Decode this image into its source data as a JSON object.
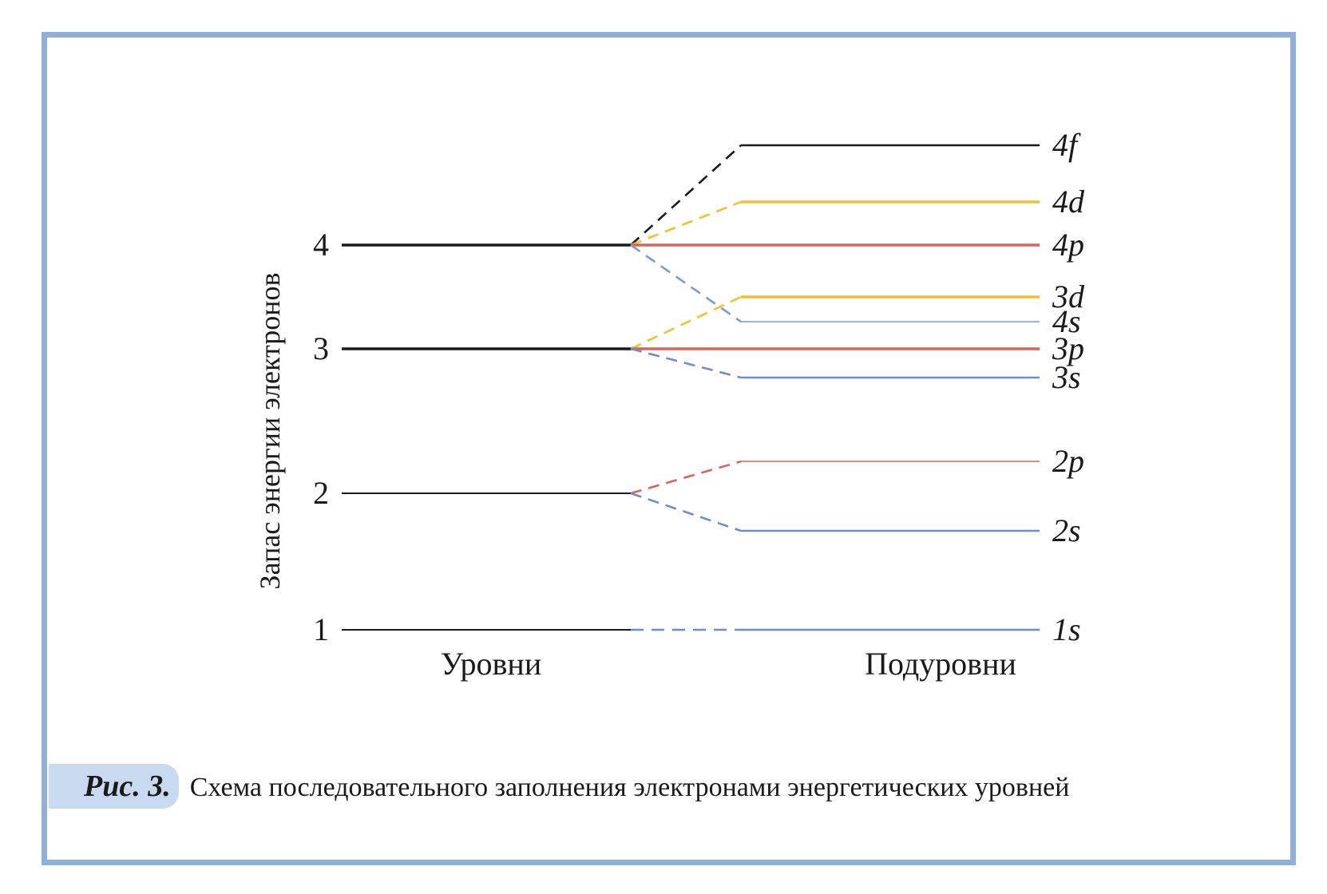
{
  "axis_title": "Запас энергии электронов",
  "column_labels": {
    "levels": "Уровни",
    "sublevels": "Подуровни"
  },
  "levels": [
    {
      "n": "4",
      "bold": true
    },
    {
      "n": "3",
      "bold": true
    },
    {
      "n": "2",
      "bold": false
    },
    {
      "n": "1",
      "bold": false
    }
  ],
  "sublevels": [
    {
      "name": "4f",
      "parent": "4",
      "color": "#1a1a1a"
    },
    {
      "name": "4d",
      "parent": "4",
      "color": "#f2c12e"
    },
    {
      "name": "4p",
      "parent": "4",
      "color": "#d9655a"
    },
    {
      "name": "3d",
      "parent": "3",
      "color": "#f2c12e"
    },
    {
      "name": "4s",
      "parent": "4",
      "color": "#7c9ccd"
    },
    {
      "name": "3p",
      "parent": "3",
      "color": "#d9655a"
    },
    {
      "name": "3s",
      "parent": "3",
      "color": "#6f8fc4"
    },
    {
      "name": "2p",
      "parent": "2",
      "color": "#d9655a"
    },
    {
      "name": "2s",
      "parent": "2",
      "color": "#6f8fc4"
    },
    {
      "name": "1s",
      "parent": "1",
      "color": "#6f8fc4"
    }
  ],
  "caption": {
    "figure_label": "Рис. 3.",
    "text": "Схема последовательного заполнения электронами энергетических уровней"
  }
}
